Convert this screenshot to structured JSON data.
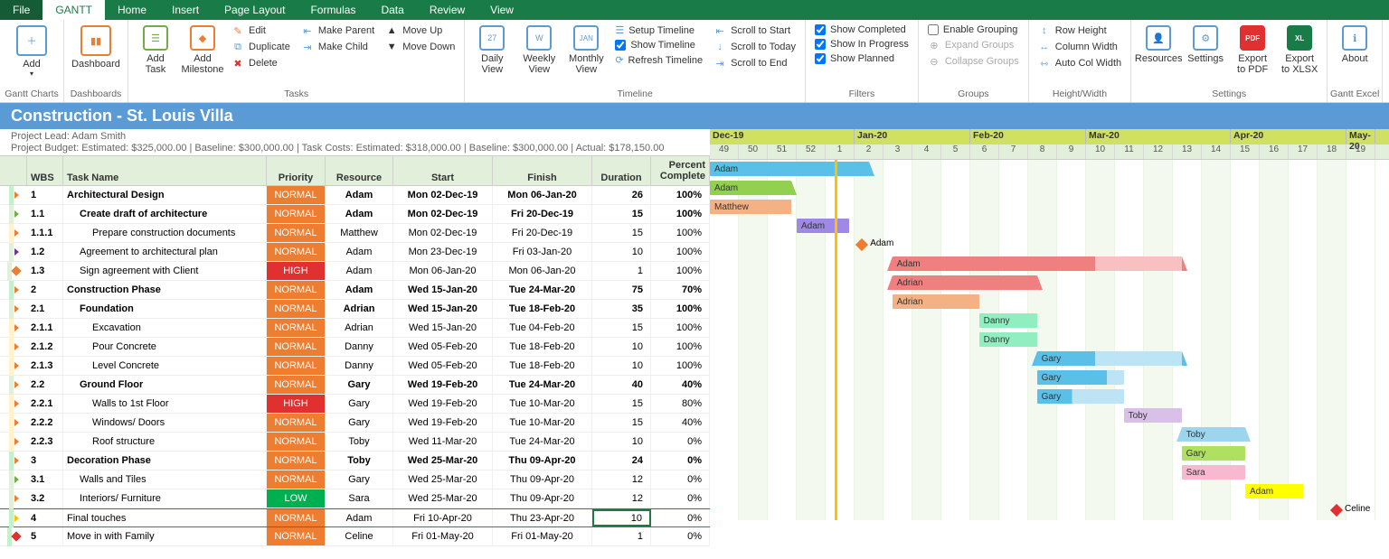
{
  "tabs": [
    "File",
    "GANTT",
    "Home",
    "Insert",
    "Page Layout",
    "Formulas",
    "Data",
    "Review",
    "View"
  ],
  "activeTab": 1,
  "ribbon": {
    "ganttCharts": {
      "label": "Gantt Charts",
      "add": "Add"
    },
    "dashboards": {
      "label": "Dashboards",
      "dash": "Dashboard"
    },
    "tasks": {
      "label": "Tasks",
      "addTask": "Add Task",
      "addMilestone": "Add Milestone",
      "edit": "Edit",
      "duplicate": "Duplicate",
      "delete": "Delete",
      "makeParent": "Make Parent",
      "makeChild": "Make Child",
      "moveUp": "Move Up",
      "moveDown": "Move Down"
    },
    "timeline": {
      "label": "Timeline",
      "daily": "Daily View",
      "weekly": "Weekly View",
      "monthly": "Monthly View",
      "setup": "Setup Timeline",
      "show": "Show Timeline",
      "refresh": "Refresh Timeline",
      "scrollStart": "Scroll to Start",
      "scrollToday": "Scroll to Today",
      "scrollEnd": "Scroll to End"
    },
    "filters": {
      "label": "Filters",
      "completed": "Show Completed",
      "progress": "Show In Progress",
      "planned": "Show Planned"
    },
    "groups": {
      "label": "Groups",
      "enable": "Enable Grouping",
      "expand": "Expand Groups",
      "collapse": "Collapse Groups"
    },
    "hw": {
      "label": "Height/Width",
      "row": "Row Height",
      "col": "Column Width",
      "auto": "Auto Col Width"
    },
    "settings": {
      "label": "Settings",
      "resources": "Resources",
      "settings": "Settings",
      "pdf": "Export to PDF",
      "xlsx": "Export to XLSX"
    },
    "excel": {
      "label": "Gantt Excel",
      "about": "About"
    }
  },
  "title": "Construction - St. Louis Villa",
  "lead": "Project Lead: Adam Smith",
  "budget": "Project Budget: Estimated: $325,000.00 | Baseline: $300,000.00 | Task Costs: Estimated: $318,000.00 | Baseline: $300,000.00 | Actual: $178,150.00",
  "cols": {
    "wbs": "WBS",
    "name": "Task Name",
    "pri": "Priority",
    "res": "Resource",
    "start": "Start",
    "fin": "Finish",
    "dur": "Duration",
    "pct1": "Percent",
    "pct2": "Complete"
  },
  "months": [
    {
      "label": "Dec-19",
      "weeks": 5
    },
    {
      "label": "Jan-20",
      "weeks": 4
    },
    {
      "label": "Feb-20",
      "weeks": 4
    },
    {
      "label": "Mar-20",
      "weeks": 5
    },
    {
      "label": "Apr-20",
      "weeks": 4
    },
    {
      "label": "May-20",
      "weeks": 1
    }
  ],
  "weekNums": [
    "49",
    "50",
    "51",
    "52",
    "1",
    "2",
    "3",
    "4",
    "5",
    "6",
    "7",
    "8",
    "9",
    "10",
    "11",
    "12",
    "13",
    "14",
    "15",
    "16",
    "17",
    "18",
    "19"
  ],
  "todayCol": 4.3,
  "rows": [
    {
      "wbs": "1",
      "name": "Architectural Design",
      "indent": 0,
      "bold": true,
      "pri": "NORMAL",
      "res": "Adam",
      "start": "Mon 02-Dec-19",
      "fin": "Mon 06-Jan-20",
      "dur": "26",
      "pct": "100%",
      "handle": "caret",
      "hc": "#ed7d31",
      "lvl": "#c6efce",
      "bar": {
        "type": "summary",
        "s": 0,
        "w": 5.5,
        "c": "#5bc0e8",
        "label": "Adam"
      }
    },
    {
      "wbs": "1.1",
      "name": "Create draft of architecture",
      "indent": 1,
      "bold": true,
      "pri": "NORMAL",
      "res": "Adam",
      "start": "Mon 02-Dec-19",
      "fin": "Fri 20-Dec-19",
      "dur": "15",
      "pct": "100%",
      "handle": "caret",
      "hc": "#70ad47",
      "lvl": "#e2efda",
      "bar": {
        "type": "summary",
        "s": 0,
        "w": 2.8,
        "c": "#92d050",
        "label": "Adam"
      }
    },
    {
      "wbs": "1.1.1",
      "name": "Prepare construction documents",
      "indent": 2,
      "pri": "NORMAL",
      "res": "Matthew",
      "start": "Mon 02-Dec-19",
      "fin": "Fri 20-Dec-19",
      "dur": "15",
      "pct": "100%",
      "handle": "caret",
      "hc": "#ed7d31",
      "lvl": "#fff2cc",
      "bar": {
        "type": "task",
        "s": 0,
        "w": 2.8,
        "c": "#f4b183",
        "label": "Matthew"
      }
    },
    {
      "wbs": "1.2",
      "name": "Agreement to architectural plan",
      "indent": 1,
      "pri": "NORMAL",
      "res": "Adam",
      "start": "Mon 23-Dec-19",
      "fin": "Fri 03-Jan-20",
      "dur": "10",
      "pct": "100%",
      "handle": "caret",
      "hc": "#7030a0",
      "lvl": "#e2efda",
      "bar": {
        "type": "task",
        "s": 3,
        "w": 1.8,
        "c": "#9e8ae6",
        "label": "Adam"
      }
    },
    {
      "wbs": "1.3",
      "name": "Sign agreement with Client",
      "indent": 1,
      "pri": "HIGH",
      "res": "Adam",
      "start": "Mon 06-Jan-20",
      "fin": "Mon 06-Jan-20",
      "dur": "1",
      "pct": "100%",
      "handle": "diamond",
      "hc": "#ed7d31",
      "lvl": "#e2efda",
      "bar": {
        "type": "milestone",
        "s": 5.1,
        "c": "#ed7d31",
        "label": "Adam"
      }
    },
    {
      "wbs": "2",
      "name": "Construction Phase",
      "indent": 0,
      "bold": true,
      "pri": "NORMAL",
      "res": "Adam",
      "start": "Wed 15-Jan-20",
      "fin": "Tue 24-Mar-20",
      "dur": "75",
      "pct": "70%",
      "handle": "caret",
      "hc": "#ed7d31",
      "lvl": "#c6efce",
      "bar": {
        "type": "summary",
        "s": 6.3,
        "w": 10,
        "c": "#f08080",
        "c2": "#f8c0c0",
        "split": 0.7,
        "label": "Adam"
      }
    },
    {
      "wbs": "2.1",
      "name": "Foundation",
      "indent": 1,
      "bold": true,
      "pri": "NORMAL",
      "res": "Adrian",
      "start": "Wed 15-Jan-20",
      "fin": "Tue 18-Feb-20",
      "dur": "35",
      "pct": "100%",
      "handle": "caret",
      "hc": "#ed7d31",
      "lvl": "#e2efda",
      "bar": {
        "type": "summary",
        "s": 6.3,
        "w": 5,
        "c": "#f08080",
        "label": "Adrian"
      }
    },
    {
      "wbs": "2.1.1",
      "name": "Excavation",
      "indent": 2,
      "pri": "NORMAL",
      "res": "Adrian",
      "start": "Wed 15-Jan-20",
      "fin": "Tue 04-Feb-20",
      "dur": "15",
      "pct": "100%",
      "handle": "caret",
      "hc": "#ed7d31",
      "lvl": "#fff2cc",
      "bar": {
        "type": "task",
        "s": 6.3,
        "w": 3,
        "c": "#f4b183",
        "label": "Adrian"
      }
    },
    {
      "wbs": "2.1.2",
      "name": "Pour Concrete",
      "indent": 2,
      "pri": "NORMAL",
      "res": "Danny",
      "start": "Wed 05-Feb-20",
      "fin": "Tue 18-Feb-20",
      "dur": "10",
      "pct": "100%",
      "handle": "caret",
      "hc": "#ed7d31",
      "lvl": "#fff2cc",
      "bar": {
        "type": "task",
        "s": 9.3,
        "w": 2,
        "c": "#90eec0",
        "label": "Danny"
      }
    },
    {
      "wbs": "2.1.3",
      "name": "Level Concrete",
      "indent": 2,
      "pri": "NORMAL",
      "res": "Danny",
      "start": "Wed 05-Feb-20",
      "fin": "Tue 18-Feb-20",
      "dur": "10",
      "pct": "100%",
      "handle": "caret",
      "hc": "#ed7d31",
      "lvl": "#fff2cc",
      "bar": {
        "type": "task",
        "s": 9.3,
        "w": 2,
        "c": "#90eec0",
        "label": "Danny"
      }
    },
    {
      "wbs": "2.2",
      "name": "Ground Floor",
      "indent": 1,
      "bold": true,
      "pri": "NORMAL",
      "res": "Gary",
      "start": "Wed 19-Feb-20",
      "fin": "Tue 24-Mar-20",
      "dur": "40",
      "pct": "40%",
      "handle": "caret",
      "hc": "#ed7d31",
      "lvl": "#e2efda",
      "bar": {
        "type": "summary",
        "s": 11.3,
        "w": 5,
        "c": "#5bc0e8",
        "c2": "#bde4f5",
        "split": 0.4,
        "label": "Gary"
      }
    },
    {
      "wbs": "2.2.1",
      "name": "Walls to 1st Floor",
      "indent": 2,
      "pri": "HIGH",
      "res": "Gary",
      "start": "Wed 19-Feb-20",
      "fin": "Tue 10-Mar-20",
      "dur": "15",
      "pct": "80%",
      "handle": "caret",
      "hc": "#ed7d31",
      "lvl": "#fff2cc",
      "bar": {
        "type": "task",
        "s": 11.3,
        "w": 3,
        "c": "#5bc0e8",
        "c2": "#bde4f5",
        "split": 0.8,
        "label": "Gary"
      }
    },
    {
      "wbs": "2.2.2",
      "name": "Windows/ Doors",
      "indent": 2,
      "pri": "NORMAL",
      "res": "Gary",
      "start": "Wed 19-Feb-20",
      "fin": "Tue 10-Mar-20",
      "dur": "15",
      "pct": "40%",
      "handle": "caret",
      "hc": "#ed7d31",
      "lvl": "#fff2cc",
      "bar": {
        "type": "task",
        "s": 11.3,
        "w": 3,
        "c": "#5bc0e8",
        "c2": "#bde4f5",
        "split": 0.4,
        "label": "Gary"
      }
    },
    {
      "wbs": "2.2.3",
      "name": "Roof structure",
      "indent": 2,
      "pri": "NORMAL",
      "res": "Toby",
      "start": "Wed 11-Mar-20",
      "fin": "Tue 24-Mar-20",
      "dur": "10",
      "pct": "0%",
      "handle": "caret",
      "hc": "#ed7d31",
      "lvl": "#fff2cc",
      "bar": {
        "type": "task",
        "s": 14.3,
        "w": 2,
        "c": "#d8c0e8",
        "label": "Toby"
      }
    },
    {
      "wbs": "3",
      "name": "Decoration Phase",
      "indent": 0,
      "bold": true,
      "pri": "NORMAL",
      "res": "Toby",
      "start": "Wed 25-Mar-20",
      "fin": "Thu 09-Apr-20",
      "dur": "24",
      "pct": "0%",
      "handle": "caret",
      "hc": "#ed7d31",
      "lvl": "#c6efce",
      "bar": {
        "type": "summary",
        "s": 16.3,
        "w": 2.2,
        "c": "#9dd4ee",
        "label": "Toby"
      }
    },
    {
      "wbs": "3.1",
      "name": "Walls and Tiles",
      "indent": 1,
      "pri": "NORMAL",
      "res": "Gary",
      "start": "Wed 25-Mar-20",
      "fin": "Thu 09-Apr-20",
      "dur": "12",
      "pct": "0%",
      "handle": "caret",
      "hc": "#70ad47",
      "lvl": "#e2efda",
      "bar": {
        "type": "task",
        "s": 16.3,
        "w": 2.2,
        "c": "#b0e060",
        "label": "Gary"
      }
    },
    {
      "wbs": "3.2",
      "name": "Interiors/ Furniture",
      "indent": 1,
      "pri": "LOW",
      "res": "Sara",
      "start": "Wed 25-Mar-20",
      "fin": "Thu 09-Apr-20",
      "dur": "12",
      "pct": "0%",
      "handle": "caret",
      "hc": "#ed7d31",
      "lvl": "#e2efda",
      "bar": {
        "type": "task",
        "s": 16.3,
        "w": 2.2,
        "c": "#f8b8d0",
        "label": "Sara"
      }
    },
    {
      "wbs": "4",
      "name": "Final touches",
      "indent": 0,
      "pri": "NORMAL",
      "res": "Adam",
      "start": "Fri 10-Apr-20",
      "fin": "Thu 23-Apr-20",
      "dur": "10",
      "pct": "0%",
      "handle": "caret",
      "hc": "#ffc000",
      "lvl": "#c6efce",
      "redline": true,
      "selDur": true,
      "bar": {
        "type": "task",
        "s": 18.5,
        "w": 2,
        "c": "#ffff00",
        "label": "Adam"
      }
    },
    {
      "wbs": "5",
      "name": "Move in with Family",
      "indent": 0,
      "pri": "NORMAL",
      "res": "Celine",
      "start": "Fri 01-May-20",
      "fin": "Fri 01-May-20",
      "dur": "1",
      "pct": "0%",
      "handle": "diamond",
      "hc": "#e03030",
      "lvl": "#c6efce",
      "bar": {
        "type": "milestone",
        "s": 21.5,
        "c": "#e03030",
        "label": "Celine"
      }
    }
  ]
}
